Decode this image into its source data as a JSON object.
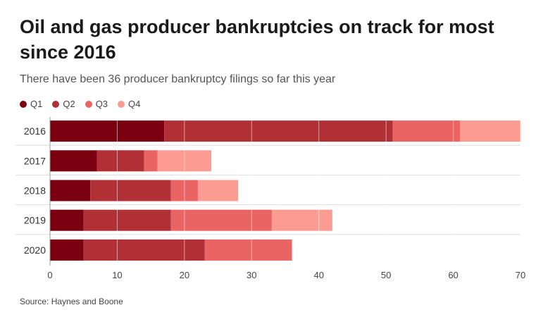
{
  "chart_data": {
    "type": "bar",
    "orientation": "horizontal",
    "stacked": true,
    "title": "Oil and gas producer bankruptcies on track for most since 2016",
    "subtitle": "There have been 36 producer bankruptcy filings so far this year",
    "categories": [
      "2016",
      "2017",
      "2018",
      "2019",
      "2020"
    ],
    "series": [
      {
        "name": "Q1",
        "color": "#7a0010",
        "values": [
          17,
          7,
          6,
          5,
          5
        ]
      },
      {
        "name": "Q2",
        "color": "#b03036",
        "values": [
          34,
          7,
          12,
          13,
          18
        ]
      },
      {
        "name": "Q3",
        "color": "#eb6464",
        "values": [
          10,
          2,
          4,
          15,
          13
        ]
      },
      {
        "name": "Q4",
        "color": "#fb9b91",
        "values": [
          9,
          8,
          6,
          9,
          0
        ]
      }
    ],
    "xticks": [
      "0",
      "10",
      "20",
      "30",
      "40",
      "50",
      "60",
      "70"
    ],
    "xlim": [
      0,
      70
    ],
    "grid": true,
    "legend_position": "top-left",
    "source": "Source: Haynes and Boone"
  }
}
